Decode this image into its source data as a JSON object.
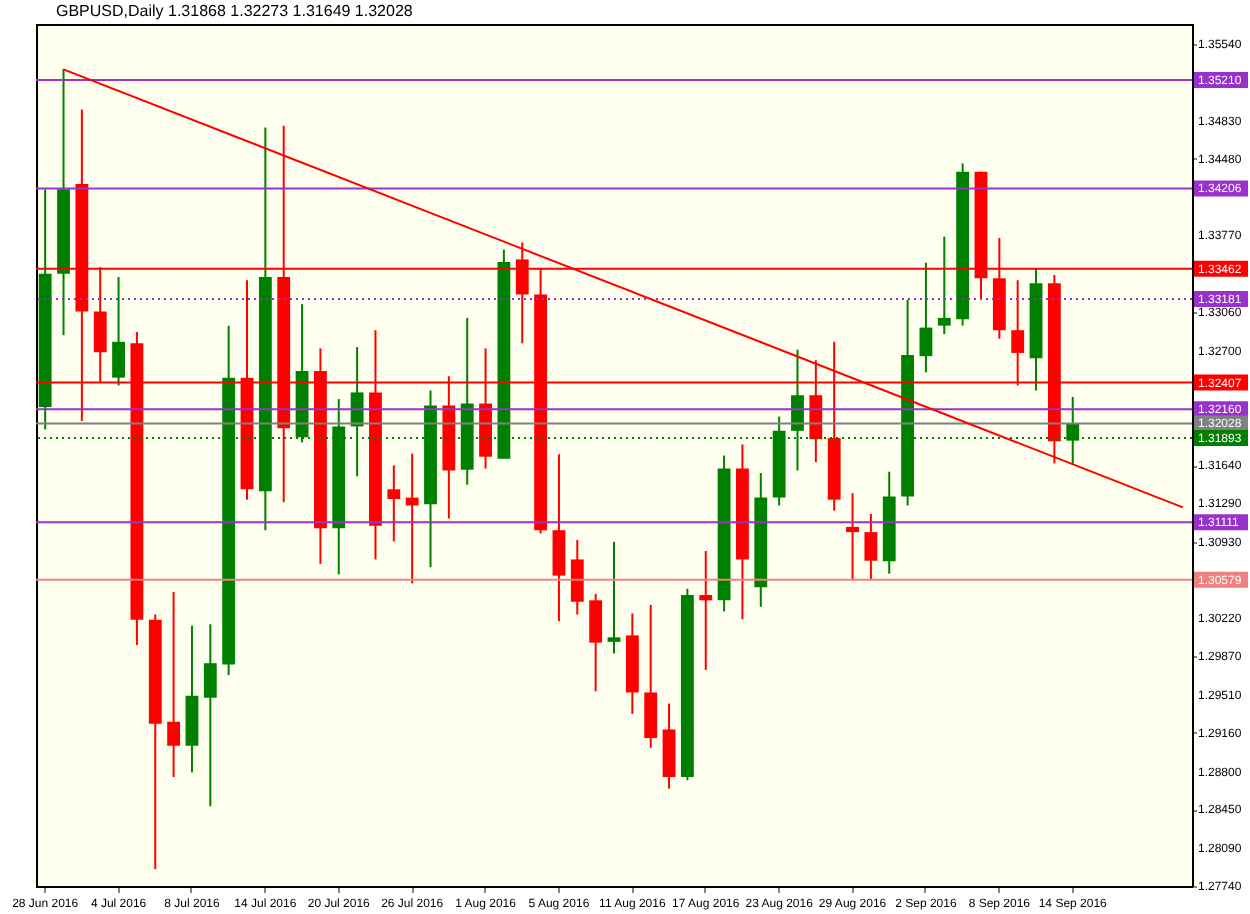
{
  "chart_data": {
    "type": "candlestick",
    "title": "GBPUSD,Daily  1.31868 1.32273 1.31649 1.32028",
    "categories": [
      "28 Jun 2016",
      null,
      null,
      null,
      "4 Jul 2016",
      null,
      null,
      null,
      "8 Jul 2016",
      null,
      null,
      null,
      "14 Jul 2016",
      null,
      null,
      null,
      "20 Jul 2016",
      null,
      null,
      null,
      "26 Jul 2016",
      null,
      null,
      null,
      "1 Aug 2016",
      null,
      null,
      null,
      "5 Aug 2016",
      null,
      null,
      null,
      "11 Aug 2016",
      null,
      null,
      null,
      "17 Aug 2016",
      null,
      null,
      null,
      "23 Aug 2016",
      null,
      null,
      null,
      "29 Aug 2016",
      null,
      null,
      null,
      "2 Sep 2016",
      null,
      null,
      null,
      "8 Sep 2016",
      null,
      null,
      null,
      "14 Sep 2016",
      null,
      null,
      null,
      null,
      null,
      null
    ],
    "ohlc": [
      [
        1.32181,
        1.34198,
        1.31972,
        1.33416
      ],
      [
        1.33416,
        1.35312,
        1.32844,
        1.34198
      ],
      [
        1.34247,
        1.34938,
        1.32049,
        1.33066
      ],
      [
        1.33066,
        1.33476,
        1.3241,
        1.32687
      ],
      [
        1.32452,
        1.33385,
        1.3238,
        1.32784
      ],
      [
        1.32771,
        1.32874,
        1.29973,
        1.30207
      ],
      [
        1.30207,
        1.30256,
        1.27896,
        1.29245
      ],
      [
        1.29263,
        1.30466,
        1.2875,
        1.29039
      ],
      [
        1.29039,
        1.30153,
        1.28793,
        1.29503
      ],
      [
        1.29485,
        1.30166,
        1.28479,
        1.29805
      ],
      [
        1.29792,
        1.32934,
        1.29696,
        1.32452
      ],
      [
        1.32452,
        1.33355,
        1.31321,
        1.31417
      ],
      [
        1.31399,
        1.3477,
        1.31038,
        1.33385
      ],
      [
        1.33385,
        1.34788,
        1.31296,
        1.31982
      ],
      [
        1.31899,
        1.33133,
        1.31851,
        1.32513
      ],
      [
        1.32513,
        1.32723,
        1.30726,
        1.31056
      ],
      [
        1.31056,
        1.32253,
        1.30628,
        1.32
      ],
      [
        1.32,
        1.32735,
        1.31538,
        1.32315
      ],
      [
        1.32315,
        1.32892,
        1.30767,
        1.3108
      ],
      [
        1.31417,
        1.31639,
        1.30935,
        1.31327
      ],
      [
        1.3134,
        1.31748,
        1.30545,
        1.31267
      ],
      [
        1.31278,
        1.32333,
        1.30695,
        1.32194
      ],
      [
        1.32194,
        1.32465,
        1.31146,
        1.31592
      ],
      [
        1.31598,
        1.33006,
        1.31459,
        1.32212
      ],
      [
        1.32212,
        1.32723,
        1.3161,
        1.31719
      ],
      [
        1.31701,
        1.33638,
        1.31701,
        1.33524
      ],
      [
        1.33548,
        1.33705,
        1.32771,
        1.33223
      ],
      [
        1.33223,
        1.33458,
        1.31007,
        1.31038
      ],
      [
        1.31038,
        1.31742,
        1.30195,
        1.30617
      ],
      [
        1.30767,
        1.30948,
        1.30256,
        1.30375
      ],
      [
        1.30388,
        1.30448,
        1.29545,
        1.29996
      ],
      [
        1.30003,
        1.3093,
        1.29895,
        1.30045
      ],
      [
        1.30063,
        1.30267,
        1.29335,
        1.29534
      ],
      [
        1.29534,
        1.30346,
        1.29021,
        1.29111
      ],
      [
        1.29191,
        1.29431,
        1.28642,
        1.2875
      ],
      [
        1.2875,
        1.30496,
        1.28721,
        1.30437
      ],
      [
        1.30437,
        1.30845,
        1.29743,
        1.30388
      ],
      [
        1.30388,
        1.3173,
        1.30285,
        1.3161
      ],
      [
        1.3161,
        1.31833,
        1.30213,
        1.30767
      ],
      [
        1.30509,
        1.31567,
        1.30328,
        1.3134
      ],
      [
        1.3134,
        1.32091,
        1.31267,
        1.31959
      ],
      [
        1.31959,
        1.32712,
        1.31592,
        1.32289
      ],
      [
        1.32289,
        1.32614,
        1.3167,
        1.31881
      ],
      [
        1.31892,
        1.32784,
        1.31219,
        1.31321
      ],
      [
        1.31069,
        1.31381,
        1.30574,
        1.3102
      ],
      [
        1.3102,
        1.31188,
        1.30574,
        1.30755
      ],
      [
        1.30749,
        1.3158,
        1.30635,
        1.3135
      ],
      [
        1.3135,
        1.33174,
        1.31267,
        1.32663
      ],
      [
        1.32651,
        1.33517,
        1.32501,
        1.32916
      ],
      [
        1.32934,
        1.33759,
        1.32856,
        1.33006
      ],
      [
        1.32994,
        1.34438,
        1.32934,
        1.34361
      ],
      [
        1.34361,
        1.34361,
        1.33174,
        1.33373
      ],
      [
        1.33373,
        1.33747,
        1.32813,
        1.32892
      ],
      [
        1.32892,
        1.33355,
        1.3238,
        1.32681
      ],
      [
        1.32632,
        1.33458,
        1.32333,
        1.33326
      ],
      [
        1.33326,
        1.33403,
        1.31657,
        1.31863
      ],
      [
        1.31868,
        1.32273,
        1.31649,
        1.32028
      ],
      null,
      null,
      null,
      null,
      null,
      null
    ],
    "colors": [
      "#008000",
      "#008000",
      "#ff0000",
      "#ff0000",
      "#008000",
      "#ff0000",
      "#ff0000",
      "#ff0000",
      "#008000",
      "#008000",
      "#008000",
      "#ff0000",
      "#008000",
      "#ff0000",
      "#008000",
      "#ff0000",
      "#008000",
      "#008000",
      "#ff0000",
      "#ff0000",
      "#ff0000",
      "#008000",
      "#ff0000",
      "#008000",
      "#ff0000",
      "#008000",
      "#ff0000",
      "#ff0000",
      "#ff0000",
      "#ff0000",
      "#ff0000",
      "#008000",
      "#ff0000",
      "#ff0000",
      "#ff0000",
      "#008000",
      "#ff0000",
      "#008000",
      "#ff0000",
      "#008000",
      "#008000",
      "#008000",
      "#ff0000",
      "#ff0000",
      "#ff0000",
      "#ff0000",
      "#008000",
      "#008000",
      "#008000",
      "#008000",
      "#008000",
      "#ff0000",
      "#ff0000",
      "#ff0000",
      "#008000",
      "#ff0000",
      "#008000",
      null,
      null,
      null,
      null,
      null,
      null
    ],
    "series": [
      {
        "type": "line",
        "color": "#ff0000",
        "values": [
          null,
          1.3531,
          null,
          null,
          null,
          null,
          null,
          null,
          null,
          null,
          null,
          null,
          null,
          null,
          null,
          null,
          null,
          null,
          null,
          null,
          null,
          null,
          null,
          null,
          null,
          null,
          null,
          null,
          null,
          null,
          null,
          null,
          null,
          null,
          null,
          null,
          null,
          null,
          null,
          null,
          null,
          null,
          null,
          null,
          null,
          null,
          null,
          null,
          null,
          null,
          null,
          null,
          null,
          null,
          null,
          null,
          null,
          null,
          null,
          null,
          null,
          null,
          1.3125
        ]
      }
    ],
    "ylim": [
      1.2774,
      1.3573
    ],
    "yticks": [
      {
        "value": 1.3554,
        "label": "1.35540"
      },
      {
        "value": 1.3483,
        "label": "1.34830"
      },
      {
        "value": 1.3448,
        "label": "1.34480"
      },
      {
        "value": 1.3377,
        "label": "1.33770"
      },
      {
        "value": 1.3306,
        "label": "1.33060"
      },
      {
        "value": 1.327,
        "label": "1.32700"
      },
      {
        "value": 1.3164,
        "label": "1.31640"
      },
      {
        "value": 1.3129,
        "label": "1.31290"
      },
      {
        "value": 1.3093,
        "label": "1.30930"
      },
      {
        "value": 1.3022,
        "label": "1.30220"
      },
      {
        "value": 1.2987,
        "label": "1.29870"
      },
      {
        "value": 1.2951,
        "label": "1.29510"
      },
      {
        "value": 1.2916,
        "label": "1.29160"
      },
      {
        "value": 1.288,
        "label": "1.28800"
      },
      {
        "value": 1.2845,
        "label": "1.28450"
      },
      {
        "value": 1.2809,
        "label": "1.28090"
      },
      {
        "value": 1.2774,
        "label": "1.27740"
      }
    ],
    "ref_lines": [
      {
        "axis": "y",
        "value": 1.3521,
        "label": "1.35210",
        "color": "#9932cc",
        "line_style": "solid"
      },
      {
        "axis": "y",
        "value": 1.34206,
        "label": "1.34206",
        "color": "#9932cc",
        "line_style": "solid"
      },
      {
        "axis": "y",
        "value": 1.33462,
        "label": "1.33462",
        "color": "#ff0000",
        "line_style": "solid"
      },
      {
        "axis": "y",
        "value": 1.33181,
        "label": "1.33181",
        "color": "#9932cc",
        "line_style": "dotted"
      },
      {
        "axis": "y",
        "value": 1.32407,
        "label": "1.32407",
        "color": "#ff0000",
        "line_style": "solid"
      },
      {
        "axis": "y",
        "value": 1.3216,
        "label": "1.32160",
        "color": "#9932cc",
        "line_style": "solid"
      },
      {
        "axis": "y",
        "value": 1.32028,
        "label": "1.32028",
        "color": "#808080",
        "line_style": "solid"
      },
      {
        "axis": "y",
        "value": 1.31893,
        "label": "1.31893",
        "color": "#008000",
        "line_style": "dotted"
      },
      {
        "axis": "y",
        "value": 1.31111,
        "label": "1.31111",
        "color": "#9932cc",
        "line_style": "solid"
      },
      {
        "axis": "y",
        "value": 1.30579,
        "label": "1.30579",
        "color": "#f08080",
        "line_style": "solid"
      }
    ]
  }
}
